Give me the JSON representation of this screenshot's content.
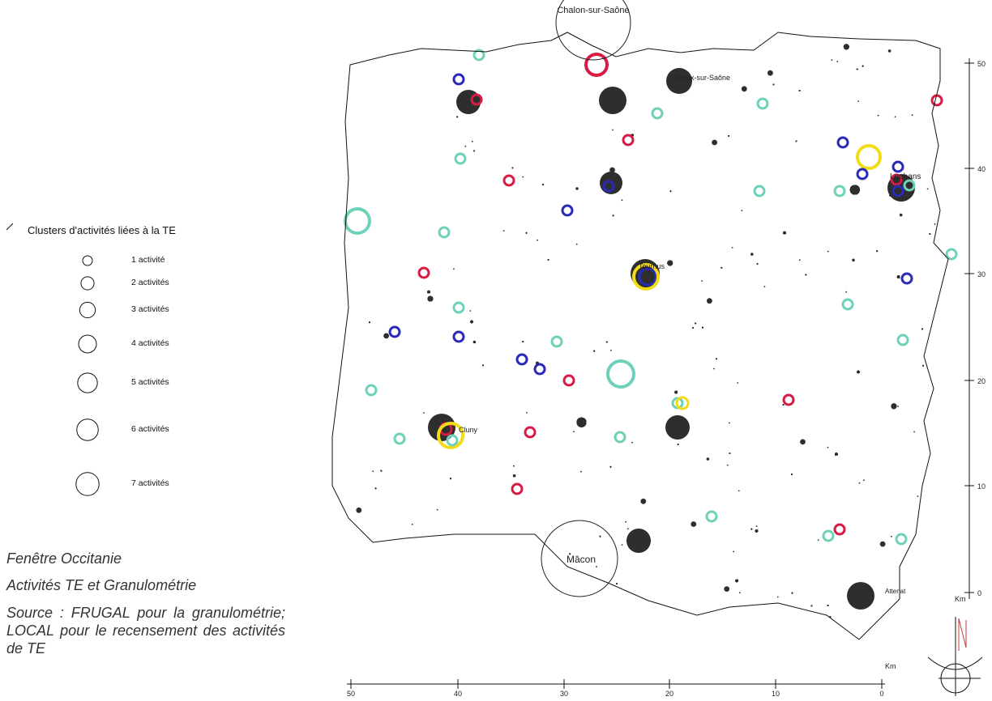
{
  "legend": {
    "title": "Clusters d'activités liées à la TE",
    "items": [
      {
        "label": "1 activité",
        "count": 1
      },
      {
        "label": "2 activités",
        "count": 2
      },
      {
        "label": "3 activités",
        "count": 3
      },
      {
        "label": "4 activités",
        "count": 4
      },
      {
        "label": "5 activités",
        "count": 5
      },
      {
        "label": "6 activités",
        "count": 6
      },
      {
        "label": "7 activités",
        "count": 7
      }
    ]
  },
  "notes": {
    "window": "Fenêtre Occitanie",
    "theme": "Activités TE et Granulométrie",
    "source": "Source : FRUGAL pour la granulométrie; LOCAL pour le recensement des activités de TE"
  },
  "map": {
    "cities": [
      "Chalon-sur-Saône",
      "Oroux-sur-Saône",
      "Louhans",
      "Tournus",
      "Cluny",
      "Mâcon",
      "Attenat"
    ],
    "x_axis": {
      "unit": "Km",
      "ticks": [
        "50",
        "40",
        "30",
        "20",
        "10",
        "0"
      ]
    },
    "y_axis": {
      "unit": "Km",
      "ticks": [
        "50",
        "40",
        "30",
        "20",
        "10",
        "0"
      ]
    },
    "colors": {
      "dots": "#2e2e2e",
      "teal": "#6fd1b9",
      "blue": "#2a2ab8",
      "red": "#d81b45",
      "yellow": "#f2dc18"
    },
    "north_arrow": "north-arrow-icon"
  }
}
